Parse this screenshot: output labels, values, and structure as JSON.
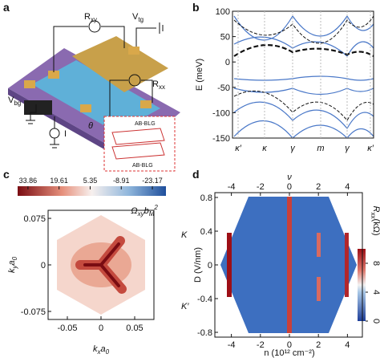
{
  "panel_labels": [
    "a",
    "b",
    "c",
    "d"
  ],
  "schematic": {
    "r_xy": {
      "main": "R",
      "sub": "xy"
    },
    "v_tg": {
      "main": "V",
      "sub": "tg"
    },
    "v_bg": {
      "main": "V",
      "sub": "bg"
    },
    "r_xx": {
      "main": "R",
      "sub": "xx"
    },
    "current": "I",
    "twist": "θ",
    "layer_top": "AB-BLG",
    "layer_bottom": "AB-BLG"
  },
  "band_plot": {
    "y_label": "E (meV)",
    "ylim": [
      -150,
      100
    ],
    "yticks": [
      -150,
      -100,
      -50,
      0,
      50,
      100
    ],
    "x_labels": [
      "κ′",
      "κ",
      "γ",
      "m",
      "γ",
      "κ′"
    ]
  },
  "berry_plot": {
    "colorbar_ticks": [
      33.86,
      19.61,
      5.35,
      -8.91,
      -23.17
    ],
    "clim": [
      38.6,
      -29.4
    ],
    "colorbar_label": {
      "main": "Ω",
      "sub": "xy",
      "main2": "b",
      "sub2": "M",
      "sup": "2"
    },
    "xlim": [
      -0.0786,
      0.0786
    ],
    "ylim": [
      -0.088,
      0.088
    ],
    "xticks": [
      -0.05,
      0,
      0.05
    ],
    "yticks": [
      -0.075,
      0,
      0.075
    ],
    "x_label": {
      "main": "k",
      "sub": "x",
      "main2": "a",
      "sub2": "0"
    },
    "y_label": {
      "main": "k",
      "sub": "y",
      "main2": "a",
      "sub2": "0"
    },
    "valley_labels": [
      "K",
      "K′"
    ]
  },
  "transport_plot": {
    "top_label": "ν",
    "xlim": [
      -5.14,
      5.03
    ],
    "xticks": [
      -4,
      -2,
      0,
      2,
      4
    ],
    "ylim": [
      -0.857,
      0.857
    ],
    "yticks": [
      -0.8,
      -0.4,
      0,
      0.4,
      0.8
    ],
    "y_label": "D (V/nm)",
    "x_label": "n (10¹² cm⁻²)",
    "colorbar_label": "R",
    "colorbar_sub": "xx",
    "colorbar_unit": "(kΩ)",
    "colorbar_ticks": [
      0,
      4,
      8
    ],
    "clim": [
      0,
      10
    ]
  }
}
